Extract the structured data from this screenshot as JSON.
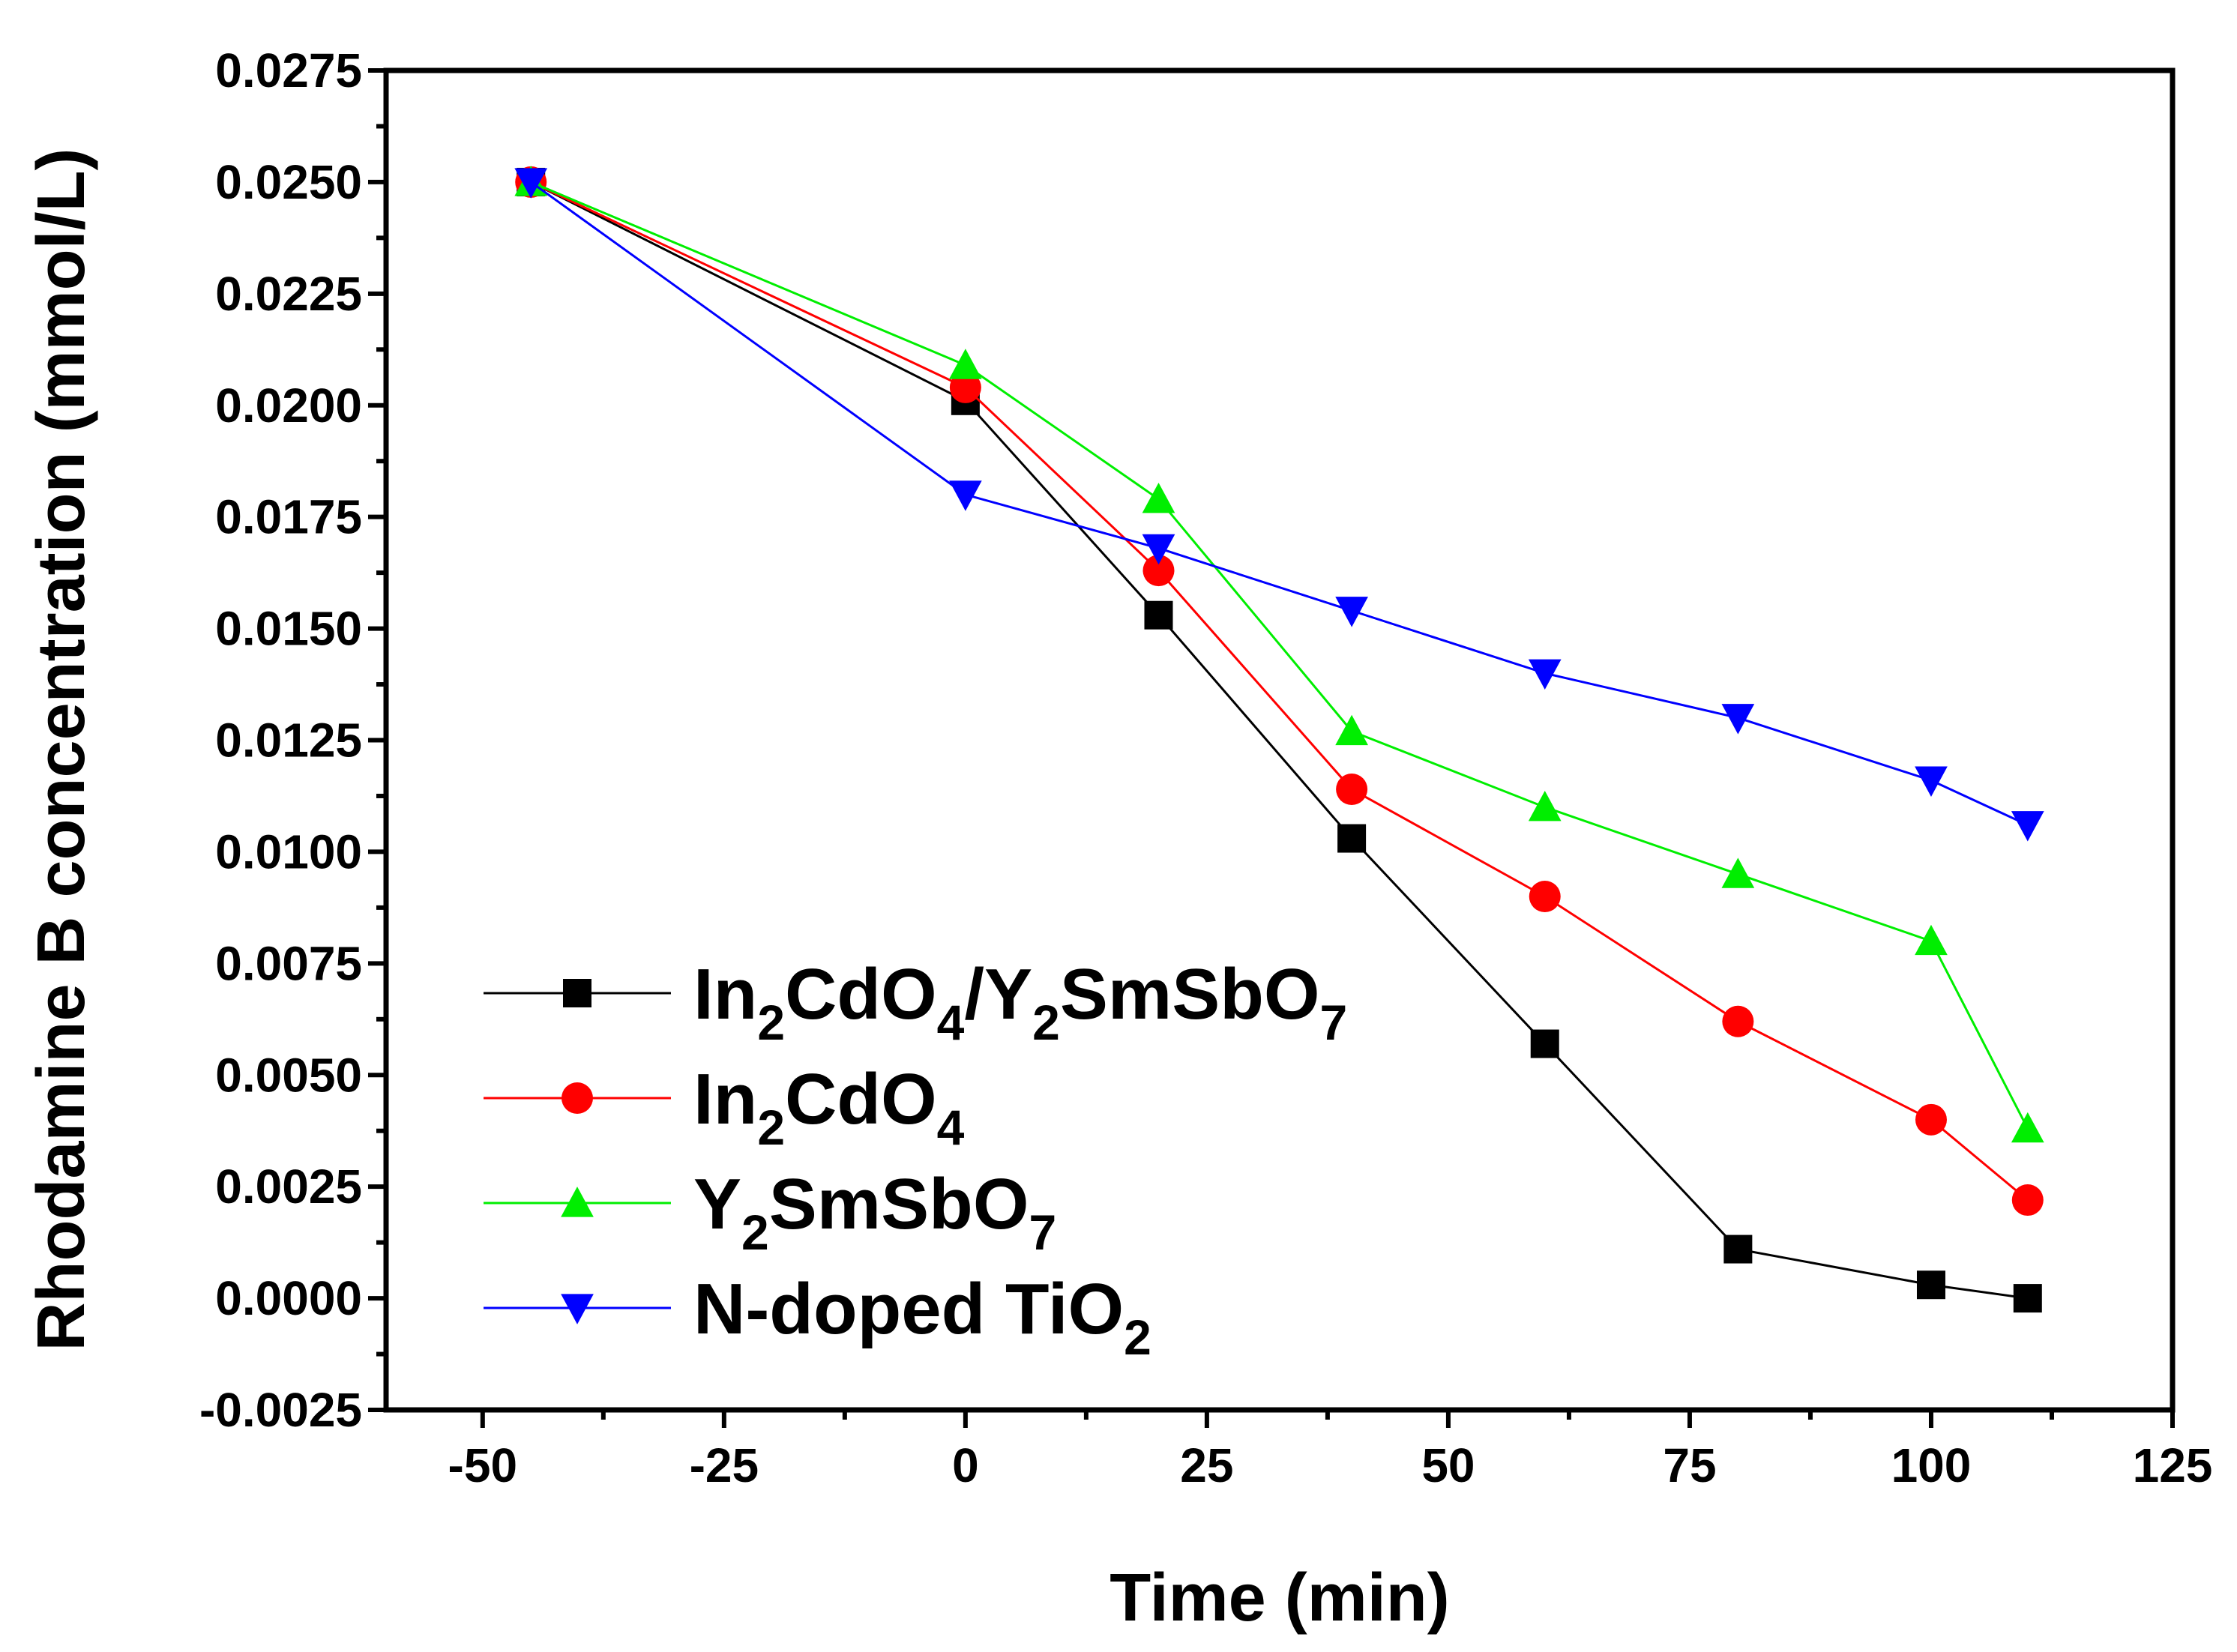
{
  "chart_data": {
    "type": "line",
    "title": "",
    "xlabel": "Time (min)",
    "ylabel": "Rhodamine B concentration (mmol/L)",
    "xlim": [
      -60,
      125
    ],
    "ylim": [
      -0.0025,
      0.0275
    ],
    "xticks": [
      -50,
      -25,
      0,
      25,
      50,
      75,
      100,
      125
    ],
    "xtick_labels": [
      "-50",
      "-25",
      "0",
      "25",
      "50",
      "75",
      "100",
      "125"
    ],
    "yticks": [
      -0.0025,
      0.0,
      0.0025,
      0.005,
      0.0075,
      0.01,
      0.0125,
      0.015,
      0.0175,
      0.02,
      0.0225,
      0.025,
      0.0275
    ],
    "ytick_labels": [
      "-0.0025",
      "0.0000",
      "0.0025",
      "0.0050",
      "0.0075",
      "0.0100",
      "0.0125",
      "0.0150",
      "0.0175",
      "0.0200",
      "0.0225",
      "0.0250",
      "0.0275"
    ],
    "grid": false,
    "legend_position": "lower-left",
    "x": [
      -45,
      0,
      20,
      40,
      60,
      80,
      100,
      110
    ],
    "series": [
      {
        "name": "In2CdO4/Y2SmSbO7",
        "label_parts": [
          [
            "In",
            "n"
          ],
          [
            "2",
            "sub"
          ],
          [
            "CdO",
            "n"
          ],
          [
            "4",
            "sub"
          ],
          [
            "/Y",
            "n"
          ],
          [
            "2",
            "sub"
          ],
          [
            "SmSbO",
            "n"
          ],
          [
            "7",
            "sub"
          ]
        ],
        "color": "#000000",
        "marker": "square",
        "values": [
          0.025,
          0.0201,
          0.0153,
          0.0103,
          0.0057,
          0.0011,
          0.0003,
          0.0
        ]
      },
      {
        "name": "In2CdO4",
        "label_parts": [
          [
            "In",
            "n"
          ],
          [
            "2",
            "sub"
          ],
          [
            "CdO",
            "n"
          ],
          [
            "4",
            "sub"
          ]
        ],
        "color": "#ff0000",
        "marker": "circle",
        "values": [
          0.025,
          0.0204,
          0.0163,
          0.0114,
          0.009,
          0.0062,
          0.004,
          0.0022
        ]
      },
      {
        "name": "Y2SmSbO7",
        "label_parts": [
          [
            "Y",
            "n"
          ],
          [
            "2",
            "sub"
          ],
          [
            "SmSbO",
            "n"
          ],
          [
            "7",
            "sub"
          ]
        ],
        "color": "#00ee00",
        "marker": "triangle-up",
        "values": [
          0.025,
          0.0209,
          0.0179,
          0.0127,
          0.011,
          0.0095,
          0.008,
          0.0038
        ]
      },
      {
        "name": "N-doped TiO2",
        "label_parts": [
          [
            "N-doped TiO",
            "n"
          ],
          [
            "2",
            "sub"
          ]
        ],
        "color": "#0000ff",
        "marker": "triangle-down",
        "values": [
          0.025,
          0.018,
          0.0168,
          0.0154,
          0.014,
          0.013,
          0.0116,
          0.0106
        ]
      }
    ]
  }
}
